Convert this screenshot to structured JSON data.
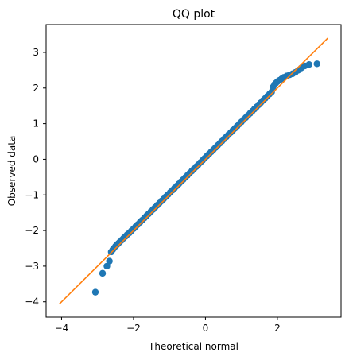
{
  "chart_data": {
    "type": "scatter",
    "title": "QQ plot",
    "xlabel": "Theoretical normal",
    "ylabel": "Observed data",
    "xlim": [
      -4.43,
      3.77
    ],
    "ylim": [
      -4.43,
      3.78
    ],
    "x_ticks": [
      -4,
      -2,
      0,
      2
    ],
    "y_ticks": [
      -4,
      -3,
      -2,
      -1,
      0,
      1,
      2,
      3
    ],
    "x_tick_labels": [
      "−4",
      "−2",
      "0",
      "2"
    ],
    "y_tick_labels": [
      "−4",
      "−3",
      "−2",
      "−1",
      "0",
      "1",
      "2",
      "3"
    ],
    "grid": false,
    "legend": "none",
    "series": [
      {
        "kind": "scatter",
        "color": "#1f77b4",
        "x": [
          -3.06,
          -2.86,
          -2.74,
          -2.67,
          -2.62,
          -2.58,
          -2.54,
          -2.5,
          -2.46,
          -2.42,
          -2.38,
          -2.33,
          -2.28,
          -2.23,
          -2.18,
          -2.12,
          -2.06,
          -2.0,
          -1.94,
          -1.88,
          -1.82,
          -1.76,
          -1.7,
          -1.64,
          -1.58,
          -1.52,
          -1.46,
          -1.4,
          -1.34,
          -1.28,
          -1.22,
          -1.16,
          -1.1,
          -1.04,
          -0.98,
          -0.92,
          -0.86,
          -0.8,
          -0.74,
          -0.68,
          -0.62,
          -0.56,
          -0.5,
          -0.44,
          -0.38,
          -0.32,
          -0.26,
          -0.2,
          -0.14,
          -0.08,
          -0.02,
          0.04,
          0.1,
          0.16,
          0.22,
          0.28,
          0.34,
          0.4,
          0.46,
          0.52,
          0.58,
          0.64,
          0.7,
          0.76,
          0.82,
          0.88,
          0.94,
          1.0,
          1.06,
          1.12,
          1.18,
          1.24,
          1.3,
          1.36,
          1.42,
          1.48,
          1.54,
          1.6,
          1.66,
          1.72,
          1.78,
          1.84,
          1.88,
          1.92,
          1.96,
          2.0,
          2.06,
          2.12,
          2.18,
          2.26,
          2.34,
          2.42,
          2.5,
          2.58,
          2.66,
          2.76,
          2.88,
          3.1
        ],
        "y": [
          -3.73,
          -3.2,
          -3.0,
          -2.86,
          -2.6,
          -2.54,
          -2.49,
          -2.44,
          -2.4,
          -2.36,
          -2.32,
          -2.27,
          -2.22,
          -2.17,
          -2.12,
          -2.07,
          -2.01,
          -1.95,
          -1.89,
          -1.83,
          -1.77,
          -1.71,
          -1.65,
          -1.59,
          -1.53,
          -1.47,
          -1.41,
          -1.35,
          -1.29,
          -1.23,
          -1.17,
          -1.11,
          -1.05,
          -0.99,
          -0.93,
          -0.87,
          -0.81,
          -0.75,
          -0.69,
          -0.63,
          -0.57,
          -0.51,
          -0.45,
          -0.39,
          -0.33,
          -0.27,
          -0.21,
          -0.15,
          -0.09,
          -0.03,
          0.03,
          0.09,
          0.15,
          0.21,
          0.27,
          0.33,
          0.39,
          0.45,
          0.51,
          0.57,
          0.63,
          0.69,
          0.75,
          0.81,
          0.87,
          0.93,
          0.99,
          1.05,
          1.11,
          1.17,
          1.23,
          1.29,
          1.35,
          1.41,
          1.47,
          1.53,
          1.59,
          1.65,
          1.71,
          1.77,
          1.83,
          1.89,
          2.03,
          2.1,
          2.14,
          2.18,
          2.22,
          2.26,
          2.3,
          2.34,
          2.37,
          2.4,
          2.44,
          2.5,
          2.56,
          2.62,
          2.66,
          2.68
        ]
      },
      {
        "kind": "line",
        "color": "#ff7f0e",
        "x": [
          -4.06,
          3.4
        ],
        "y": [
          -4.06,
          3.4
        ]
      }
    ]
  }
}
